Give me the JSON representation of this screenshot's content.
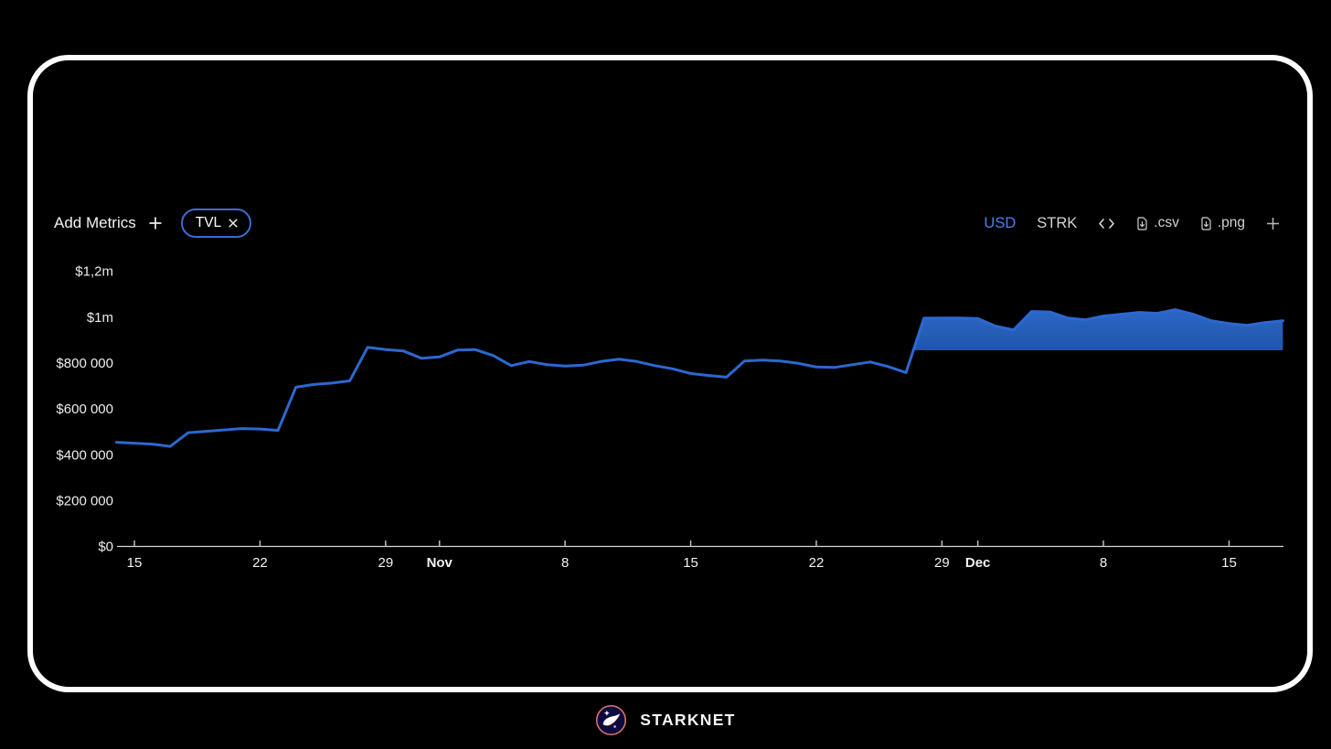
{
  "controls": {
    "add_metrics_label": "Add Metrics",
    "metric_chip": {
      "label": "TVL"
    },
    "currency_options": [
      "USD",
      "STRK"
    ],
    "selected_currency": "USD",
    "export_csv_label": ".csv",
    "export_png_label": ".png"
  },
  "footer": {
    "brand": "STARKNET"
  },
  "colors": {
    "accent_line": "#2c68d0",
    "area_fill_top": "#2c66c6",
    "area_fill_bottom": "#2056ac",
    "usd_selected": "#4e80f0",
    "pill_border": "#3b6cd4"
  },
  "chart_data": {
    "type": "area",
    "title": "TVL",
    "unit": "USD",
    "legend": [],
    "grid": false,
    "y_ticks": [
      {
        "label": "$0",
        "value": 0
      },
      {
        "label": "$200 000",
        "value": 200000
      },
      {
        "label": "$400 000",
        "value": 400000
      },
      {
        "label": "$600 000",
        "value": 600000
      },
      {
        "label": "$800 000",
        "value": 800000
      },
      {
        "label": "$1m",
        "value": 1000000
      },
      {
        "label": "$1,2m",
        "value": 1200000
      }
    ],
    "ylim": [
      0,
      1300000
    ],
    "x_ticks": [
      {
        "label": "15",
        "day": 1,
        "bold": false
      },
      {
        "label": "22",
        "day": 8,
        "bold": false
      },
      {
        "label": "29",
        "day": 15,
        "bold": false
      },
      {
        "label": "Nov",
        "day": 18,
        "bold": true
      },
      {
        "label": "8",
        "day": 25,
        "bold": false
      },
      {
        "label": "15",
        "day": 32,
        "bold": false
      },
      {
        "label": "22",
        "day": 39,
        "bold": false
      },
      {
        "label": "29",
        "day": 46,
        "bold": false
      },
      {
        "label": "Dec",
        "day": 48,
        "bold": true
      },
      {
        "label": "8",
        "day": 55,
        "bold": false
      },
      {
        "label": "15",
        "day": 62,
        "bold": false
      }
    ],
    "fill_baseline_value": 855000,
    "fill_start_index": 45,
    "series": [
      {
        "name": "TVL",
        "dates": [
          "Oct 14",
          "Oct 15",
          "Oct 16",
          "Oct 17",
          "Oct 18",
          "Oct 19",
          "Oct 20",
          "Oct 21",
          "Oct 22",
          "Oct 23",
          "Oct 24",
          "Oct 25",
          "Oct 26",
          "Oct 27",
          "Oct 28",
          "Oct 29",
          "Oct 30",
          "Oct 31",
          "Nov 1",
          "Nov 2",
          "Nov 3",
          "Nov 4",
          "Nov 5",
          "Nov 6",
          "Nov 7",
          "Nov 8",
          "Nov 9",
          "Nov 10",
          "Nov 11",
          "Nov 12",
          "Nov 13",
          "Nov 14",
          "Nov 15",
          "Nov 16",
          "Nov 17",
          "Nov 18",
          "Nov 19",
          "Nov 20",
          "Nov 21",
          "Nov 22",
          "Nov 23",
          "Nov 24",
          "Nov 25",
          "Nov 26",
          "Nov 27",
          "Nov 28",
          "Nov 29",
          "Nov 30",
          "Dec 1",
          "Dec 2",
          "Dec 3",
          "Dec 4",
          "Dec 5",
          "Dec 6",
          "Dec 7",
          "Dec 8",
          "Dec 9",
          "Dec 10",
          "Dec 11",
          "Dec 12",
          "Dec 13",
          "Dec 14",
          "Dec 15",
          "Dec 16",
          "Dec 17",
          "Dec 18"
        ],
        "values": [
          454000,
          450000,
          446000,
          436000,
          496000,
          502000,
          508000,
          514000,
          512000,
          506000,
          694000,
          706000,
          712000,
          722000,
          868000,
          858000,
          852000,
          820000,
          826000,
          856000,
          858000,
          832000,
          788000,
          806000,
          792000,
          786000,
          790000,
          806000,
          816000,
          806000,
          788000,
          774000,
          754000,
          745000,
          738000,
          808000,
          812000,
          808000,
          798000,
          782000,
          780000,
          792000,
          804000,
          784000,
          758000,
          995000,
          996000,
          996000,
          994000,
          960000,
          944000,
          1024000,
          1022000,
          996000,
          988000,
          1004000,
          1012000,
          1020000,
          1016000,
          1032000,
          1012000,
          984000,
          972000,
          964000,
          976000,
          984000
        ]
      }
    ]
  }
}
